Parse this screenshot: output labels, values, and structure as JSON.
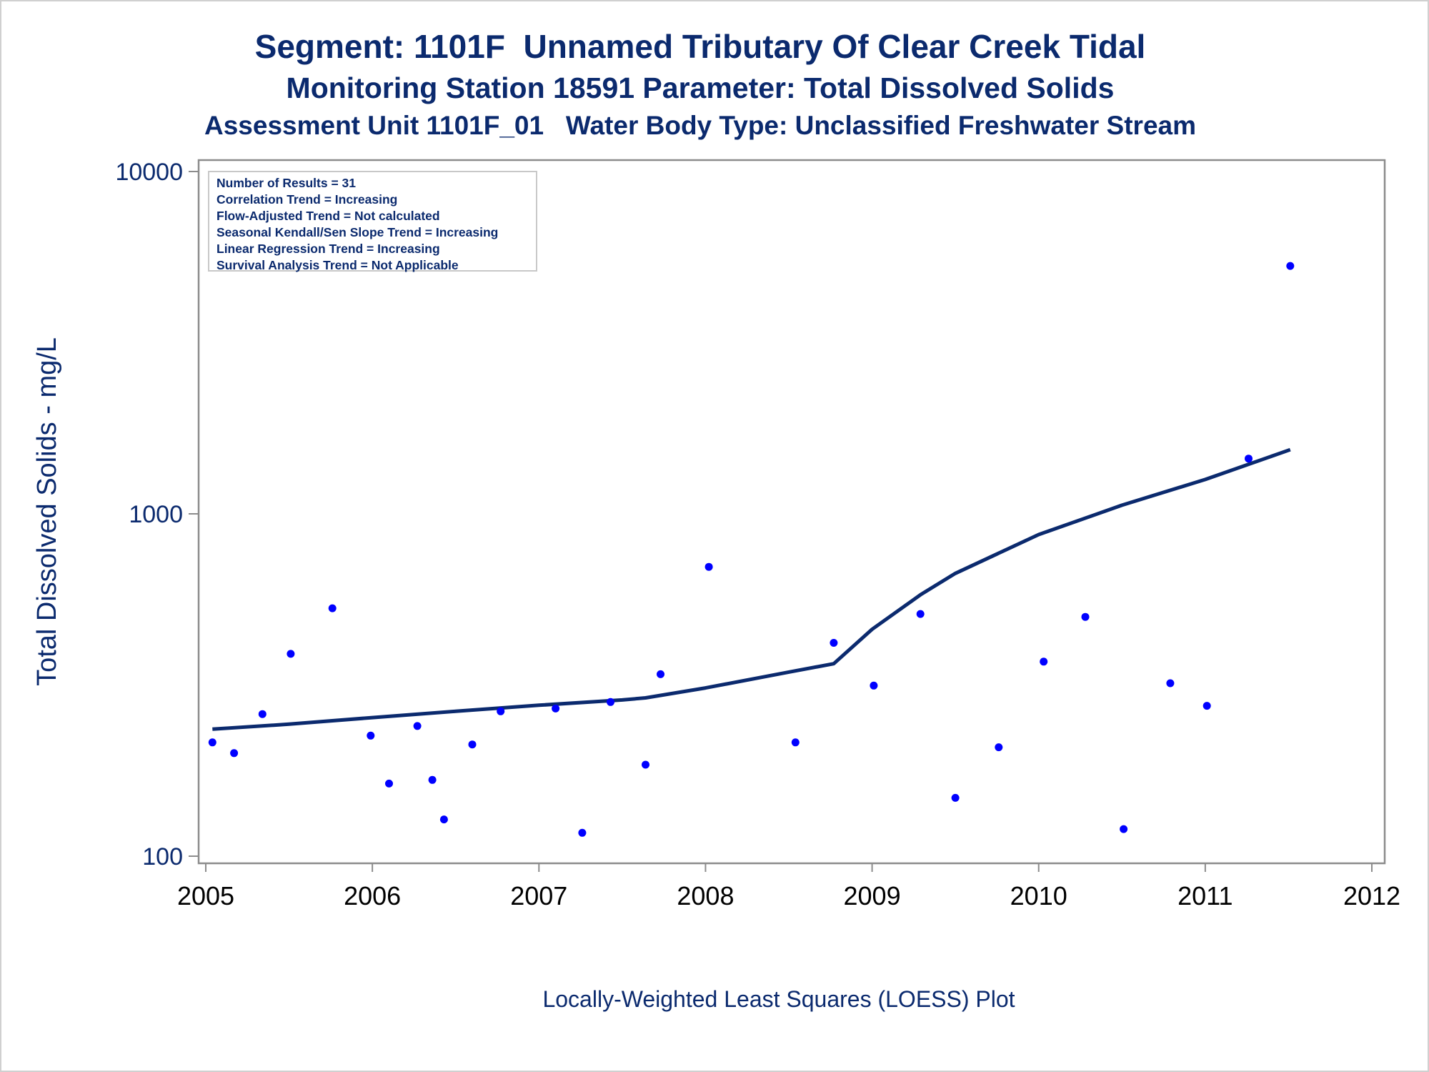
{
  "title": "Segment: 1101F  Unnamed Tributary Of Clear Creek Tidal",
  "subtitle": "Monitoring Station 18591 Parameter: Total Dissolved Solids",
  "subtitle2": "Assessment Unit 1101F_01   Water Body Type: Unclassified Freshwater Stream",
  "footnote": "Locally-Weighted Least Squares (LOESS) Plot",
  "stats": [
    "Number of Results = 31",
    "Correlation Trend = Increasing",
    "Flow-Adjusted Trend = Not calculated",
    "Seasonal Kendall/Sen Slope Trend = Increasing",
    "Linear Regression Trend = Increasing",
    "Survival Analysis Trend = Not Applicable"
  ],
  "colors": {
    "text": "#0b2a6e",
    "points": "#0000ff",
    "line": "#0b2a6e",
    "axis": "#8c8c8c"
  },
  "chart_data": {
    "type": "scatter",
    "title": "Segment: 1101F  Unnamed Tributary Of Clear Creek Tidal",
    "ylabel": "Total Dissolved Solids - mg/L",
    "xlabel": "",
    "yscale": "log",
    "ylim": [
      100,
      10000
    ],
    "xlim": [
      2005,
      2012
    ],
    "x_ticks": [
      "2005",
      "2006",
      "2007",
      "2008",
      "2009",
      "2010",
      "2011",
      "2012"
    ],
    "y_ticks": [
      "100",
      "1000",
      "10000"
    ],
    "grid": false,
    "legend": "top-left",
    "series": [
      {
        "kind": "points",
        "x": [
          2005.04,
          2005.17,
          2005.34,
          2005.51,
          2005.76,
          2005.99,
          2006.1,
          2006.27,
          2006.36,
          2006.43,
          2006.6,
          2006.77,
          2007.1,
          2007.26,
          2007.43,
          2007.64,
          2007.73,
          2008.02,
          2008.54,
          2008.77,
          2009.01,
          2009.29,
          2009.5,
          2009.76,
          2010.03,
          2010.28,
          2010.51,
          2010.79,
          2011.01,
          2011.26,
          2011.51
        ],
        "y": [
          215,
          200,
          260,
          390,
          530,
          225,
          163,
          240,
          167,
          128,
          212,
          265,
          270,
          117,
          282,
          185,
          340,
          700,
          215,
          420,
          315,
          510,
          148,
          208,
          370,
          500,
          120,
          320,
          275,
          1450,
          5300
        ]
      },
      {
        "kind": "loess",
        "x": [
          2005.04,
          2005.5,
          2006.0,
          2006.5,
          2007.0,
          2007.5,
          2007.64,
          2008.0,
          2008.5,
          2008.77,
          2009.0,
          2009.29,
          2009.5,
          2010.0,
          2010.5,
          2011.0,
          2011.51
        ],
        "y": [
          235,
          243,
          254,
          265,
          276,
          286,
          290,
          310,
          345,
          365,
          460,
          580,
          670,
          870,
          1060,
          1260,
          1540
        ]
      }
    ]
  }
}
